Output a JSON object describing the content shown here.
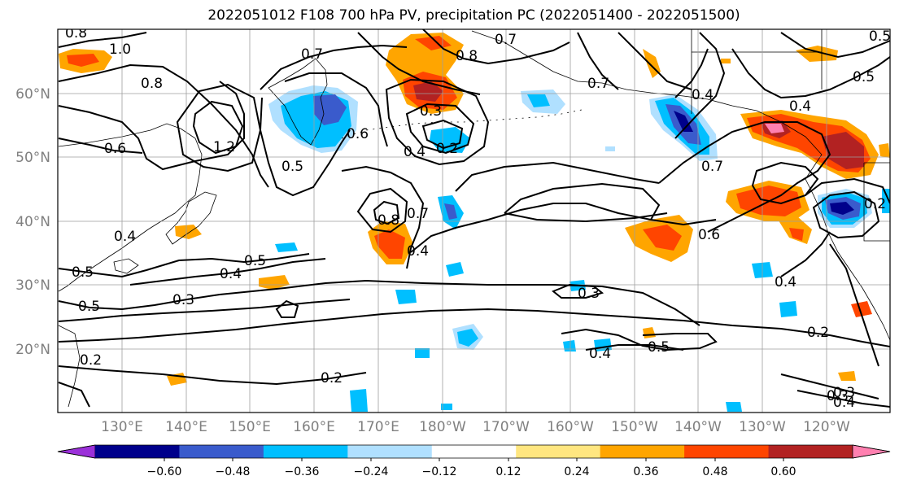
{
  "title": "2022051012 F108 700 hPa PV, precipitation PC (2022051400 - 2022051500)",
  "lat_labels": [
    "60°N",
    "50°N",
    "40°N",
    "30°N",
    "20°N"
  ],
  "lon_labels": [
    "130°E",
    "140°E",
    "150°E",
    "160°E",
    "170°E",
    "180°W",
    "170°W",
    "160°W",
    "150°W",
    "140°W",
    "130°W",
    "120°W"
  ],
  "contour_labels": [
    "0.8",
    "1.0",
    "0.8",
    "1.2",
    "0.7",
    "0.6",
    "0.7",
    "0.8",
    "0.7",
    "0.3",
    "0.2",
    "0.4",
    "0.6",
    "0.5",
    "0.8",
    "0.7",
    "0.4",
    "0.4",
    "0.5",
    "0.5",
    "0.3",
    "0.4",
    "0.5",
    "0.3",
    "0.2",
    "0.5",
    "0.2",
    "0.3",
    "0.4",
    "0.5",
    "0.6",
    "0.4",
    "0.2",
    "0.4",
    "0.2",
    "0.3",
    "0.4",
    "0.5",
    "0.7",
    "0.4"
  ],
  "colorbar": {
    "ticks": [
      "−0.60",
      "−0.48",
      "−0.36",
      "−0.24",
      "−0.12",
      "0.12",
      "0.24",
      "0.36",
      "0.48",
      "0.60"
    ],
    "colors": [
      "#9b30d9",
      "#00008b",
      "#3a5bcc",
      "#00bfff",
      "#b0e0ff",
      "#ffffff",
      "#ffe680",
      "#ffa500",
      "#ff4500",
      "#b22222",
      "#ff80b0"
    ]
  }
}
